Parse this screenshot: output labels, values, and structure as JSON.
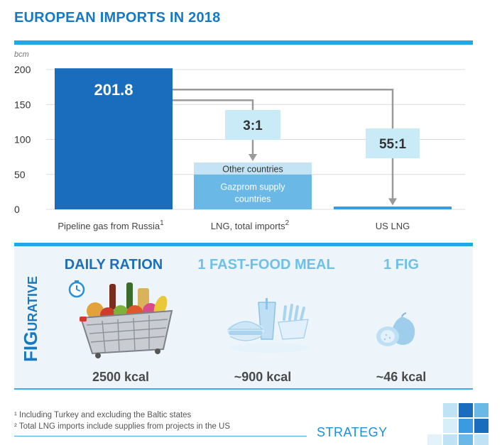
{
  "header": {
    "title": "EUROPEAN IMPORTS IN 2018"
  },
  "chart_data": {
    "type": "bar",
    "unit_label": "bcm",
    "ylim": [
      0,
      200
    ],
    "yticks": [
      0,
      50,
      100,
      150,
      200
    ],
    "grid": true,
    "categories": [
      "Pipeline gas from Russia",
      "LNG, total imports",
      "US LNG"
    ],
    "category_superscripts": [
      "1",
      "2",
      ""
    ],
    "bars": [
      {
        "category": "Pipeline gas from Russia",
        "segments": [
          {
            "label": "",
            "value": 201.8,
            "color": "#1a6dbd"
          }
        ],
        "value_label": "201.8"
      },
      {
        "category": "LNG, total imports",
        "segments": [
          {
            "label": "Gazprom supply countries",
            "value": 50,
            "color": "#6ab8e6"
          },
          {
            "label": "Other countries",
            "value": 17,
            "color": "#c4e4f5"
          }
        ]
      },
      {
        "category": "US LNG",
        "segments": [
          {
            "label": "",
            "value": 3.7,
            "color": "#3a9be0"
          }
        ]
      }
    ],
    "annotations": [
      "3:1",
      "55:1"
    ]
  },
  "figurative": {
    "vertical_label_big": "FIG",
    "vertical_label_small": "URATIVE",
    "items": [
      {
        "title": "DAILY RATION",
        "kcal": "2500 kcal",
        "icon": "grocery-basket-icon"
      },
      {
        "title": "1 FAST-FOOD MEAL",
        "kcal": "~900 kcal",
        "icon": "fast-food-meal-icon"
      },
      {
        "title": "1 FIG",
        "kcal": "~46 kcal",
        "icon": "fig-icon"
      }
    ]
  },
  "footnotes": [
    "¹ Including Turkey and excluding the Baltic states",
    "² Total LNG imports include supplies from projects in the US"
  ],
  "footer": {
    "section": "STRATEGY"
  },
  "colors": {
    "accent": "#22a8e6",
    "dark_blue": "#1a6dbd",
    "light_blue": "#c4e4f5",
    "callout": "#c9ebf8"
  }
}
